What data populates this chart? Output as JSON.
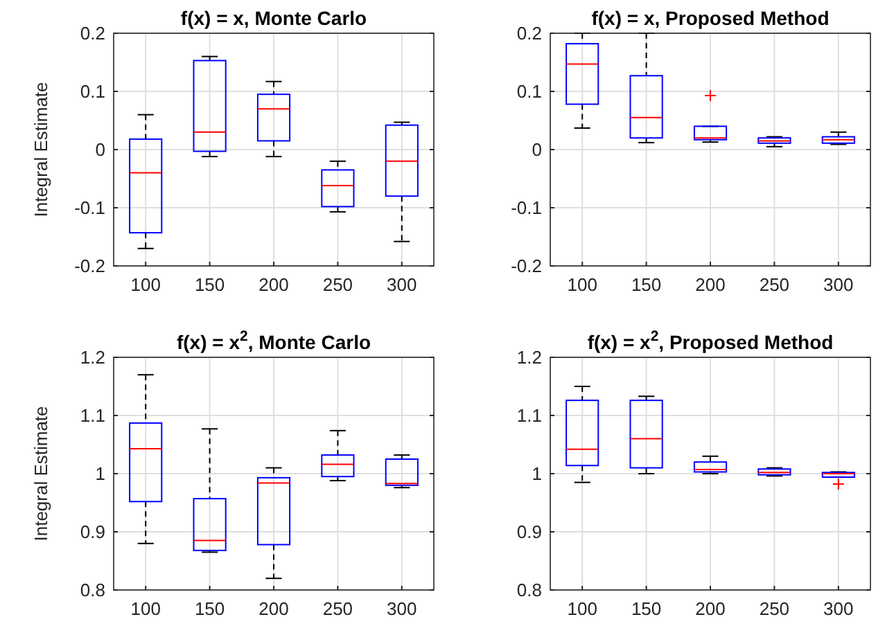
{
  "chart_data": [
    {
      "type": "box",
      "title": "f(x) = x, Monte Carlo",
      "ylabel": "Integral Estimate",
      "categories": [
        "100",
        "150",
        "200",
        "250",
        "300"
      ],
      "color": "#0000ff",
      "grid": true,
      "ylim": [
        -0.2,
        0.2
      ],
      "yticks": [
        -0.2,
        -0.1,
        0,
        0.1,
        0.2
      ],
      "boxes": [
        {
          "low": -0.17,
          "q1": -0.143,
          "median": -0.04,
          "q3": 0.018,
          "high": 0.06
        },
        {
          "low": -0.012,
          "q1": -0.003,
          "median": 0.03,
          "q3": 0.153,
          "high": 0.16
        },
        {
          "low": -0.012,
          "q1": 0.015,
          "median": 0.07,
          "q3": 0.095,
          "high": 0.117
        },
        {
          "low": -0.107,
          "q1": -0.098,
          "median": -0.062,
          "q3": -0.035,
          "high": -0.02
        },
        {
          "low": -0.158,
          "q1": -0.08,
          "median": -0.02,
          "q3": 0.042,
          "high": 0.047
        }
      ]
    },
    {
      "type": "box",
      "title": "f(x) = x, Proposed Method",
      "categories": [
        "100",
        "150",
        "200",
        "250",
        "300"
      ],
      "color": "#0000ff",
      "grid": true,
      "ylim": [
        -0.2,
        0.2
      ],
      "yticks": [
        -0.2,
        -0.1,
        0,
        0.1,
        0.2
      ],
      "boxes": [
        {
          "low": 0.037,
          "q1": 0.078,
          "median": 0.147,
          "q3": 0.182,
          "high": 0.2
        },
        {
          "low": 0.012,
          "q1": 0.02,
          "median": 0.055,
          "q3": 0.127,
          "high": 0.2
        },
        {
          "low": 0.013,
          "q1": 0.017,
          "median": 0.02,
          "q3": 0.04,
          "high": 0.04,
          "outliers": [
            0.093
          ]
        },
        {
          "low": 0.005,
          "q1": 0.011,
          "median": 0.015,
          "q3": 0.02,
          "high": 0.022
        },
        {
          "low": 0.009,
          "q1": 0.011,
          "median": 0.017,
          "q3": 0.022,
          "high": 0.03
        }
      ]
    },
    {
      "type": "box",
      "title": "f(x) = x$^{2}$, Monte Carlo",
      "ylabel": "Integral Estimate",
      "categories": [
        "100",
        "150",
        "200",
        "250",
        "300"
      ],
      "color": "#0000ff",
      "grid": true,
      "ylim": [
        0.8,
        1.2
      ],
      "yticks": [
        0.8,
        0.9,
        1,
        1.1,
        1.2
      ],
      "boxes": [
        {
          "low": 0.88,
          "q1": 0.952,
          "median": 1.043,
          "q3": 1.087,
          "high": 1.17
        },
        {
          "low": 0.865,
          "q1": 0.868,
          "median": 0.885,
          "q3": 0.957,
          "high": 1.077
        },
        {
          "low": 0.82,
          "q1": 0.878,
          "median": 0.984,
          "q3": 0.993,
          "high": 1.01
        },
        {
          "low": 0.988,
          "q1": 0.995,
          "median": 1.016,
          "q3": 1.032,
          "high": 1.074
        },
        {
          "low": 0.976,
          "q1": 0.98,
          "median": 0.983,
          "q3": 1.025,
          "high": 1.032
        }
      ]
    },
    {
      "type": "box",
      "title": "f(x) = x$^{2}$, Proposed Method",
      "categories": [
        "100",
        "150",
        "200",
        "250",
        "300"
      ],
      "color": "#0000ff",
      "grid": true,
      "ylim": [
        0.8,
        1.2
      ],
      "yticks": [
        0.8,
        0.9,
        1,
        1.1,
        1.2
      ],
      "boxes": [
        {
          "low": 0.985,
          "q1": 1.014,
          "median": 1.042,
          "q3": 1.126,
          "high": 1.15
        },
        {
          "low": 1.0,
          "q1": 1.01,
          "median": 1.06,
          "q3": 1.126,
          "high": 1.133
        },
        {
          "low": 1.0,
          "q1": 1.003,
          "median": 1.007,
          "q3": 1.02,
          "high": 1.03
        },
        {
          "low": 0.996,
          "q1": 0.998,
          "median": 1.002,
          "q3": 1.008,
          "high": 1.01
        },
        {
          "low": 0.994,
          "q1": 0.994,
          "median": 1.0,
          "q3": 1.002,
          "high": 1.003,
          "outliers": [
            0.982
          ]
        }
      ]
    }
  ]
}
